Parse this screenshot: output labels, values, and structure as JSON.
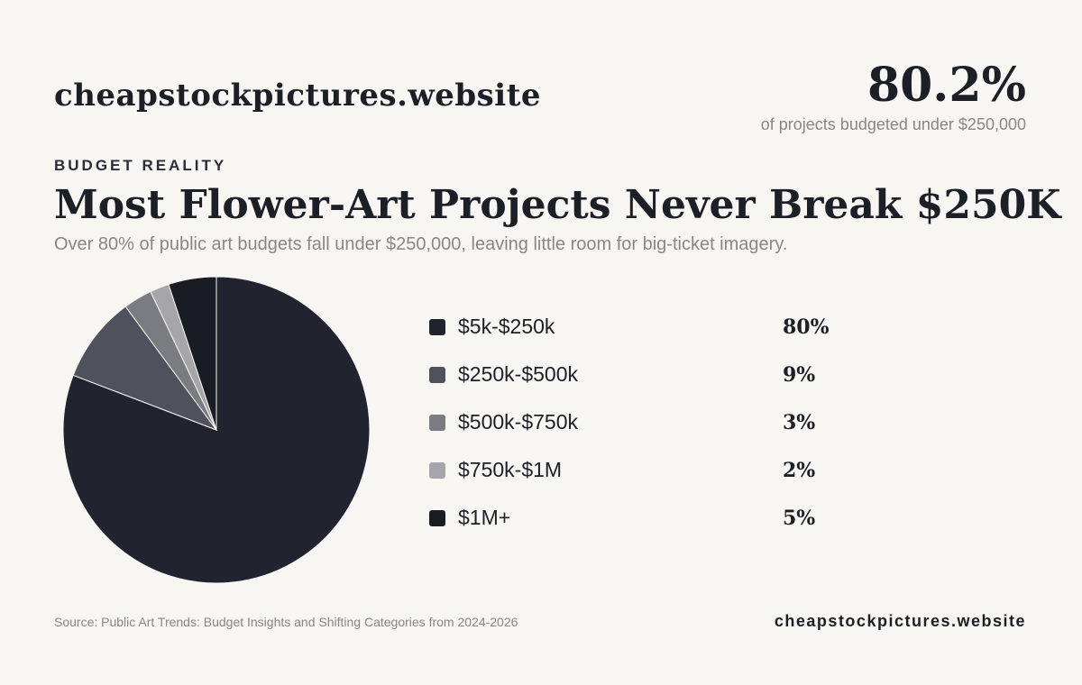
{
  "header": {
    "brand": "cheapstockpictures.website",
    "kpi_value": "80.2%",
    "kpi_caption": "of projects budgeted under $250,000"
  },
  "eyebrow": "BUDGET REALITY",
  "title": "Most Flower-Art Projects Never Break $250K",
  "subtitle": "Over 80% of public art budgets fall under $250,000, leaving little room for big-ticket imagery.",
  "chart_data": {
    "type": "pie",
    "title": "",
    "categories": [
      "$5k-$250k",
      "$250k-$500k",
      "$500k-$750k",
      "$750k-$1M",
      "$1M+"
    ],
    "values": [
      80,
      9,
      3,
      2,
      5
    ],
    "value_labels": [
      "80%",
      "9%",
      "3%",
      "2%",
      "5%"
    ],
    "colors": [
      "#21242f",
      "#4f525c",
      "#7b7c82",
      "#a6a6aa",
      "#1a1c24"
    ],
    "legend_position": "right"
  },
  "footer": {
    "source": "Source: Public Art Trends: Budget Insights and Shifting Categories from 2024-2026",
    "brand": "cheapstockpictures.website"
  }
}
